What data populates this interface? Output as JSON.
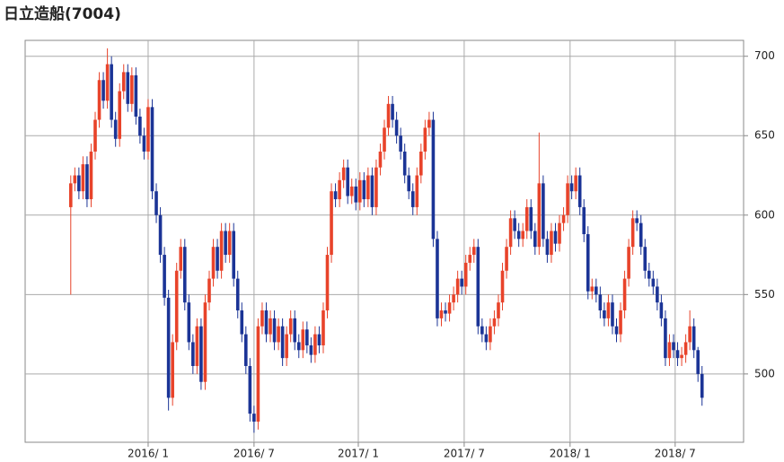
{
  "chart_data": {
    "type": "candlestick",
    "title": "日立造船(7004)",
    "up_color": "#e8432a",
    "down_color": "#1b3496",
    "grid": true,
    "ylim": [
      457,
      710
    ],
    "yticks": [
      500,
      550,
      600,
      650,
      700
    ],
    "xlim": [
      -11.2,
      165.2
    ],
    "xticks": [
      {
        "value": 19.0,
        "label": "2016/ 1"
      },
      {
        "value": 45.0,
        "label": "2016/ 7"
      },
      {
        "value": 70.6,
        "label": "2017/ 1"
      },
      {
        "value": 96.6,
        "label": "2017/ 7"
      },
      {
        "value": 122.6,
        "label": "2018/ 1"
      },
      {
        "value": 148.4,
        "label": "2018/ 7"
      }
    ],
    "open": [
      605,
      620,
      625,
      615,
      632,
      610,
      640,
      660,
      685,
      672,
      695,
      660,
      648,
      678,
      690,
      670,
      688,
      662,
      650,
      640,
      668,
      615,
      600,
      575,
      548,
      485,
      520,
      565,
      580,
      545,
      520,
      505,
      530,
      495,
      545,
      560,
      580,
      565,
      590,
      575,
      590,
      560,
      540,
      525,
      505,
      475,
      470,
      530,
      540,
      525,
      535,
      520,
      530,
      510,
      525,
      535,
      520,
      515,
      528,
      518,
      512,
      525,
      518,
      540,
      575,
      615,
      610,
      622,
      630,
      612,
      618,
      608,
      622,
      610,
      625,
      605,
      630,
      640,
      655,
      670,
      660,
      650,
      640,
      625,
      615,
      605,
      625,
      640,
      655,
      660,
      585,
      535,
      540,
      538,
      545,
      550,
      560,
      555,
      570,
      575,
      580,
      530,
      525,
      520,
      530,
      535,
      545,
      565,
      580,
      598,
      590,
      585,
      590,
      605,
      590,
      580,
      620,
      585,
      575,
      590,
      582,
      595,
      600,
      620,
      615,
      625,
      605,
      588,
      552,
      555,
      550,
      540,
      535,
      545,
      530,
      525,
      540,
      560,
      580,
      598,
      595,
      580,
      565,
      560,
      555,
      545,
      535,
      510,
      520,
      515,
      510,
      512,
      520,
      530,
      515,
      500
    ],
    "high": [
      625,
      630,
      630,
      637,
      637,
      645,
      665,
      690,
      690,
      705,
      700,
      665,
      683,
      695,
      695,
      693,
      693,
      667,
      655,
      673,
      673,
      620,
      605,
      580,
      553,
      525,
      570,
      585,
      585,
      550,
      525,
      535,
      535,
      550,
      565,
      585,
      585,
      595,
      595,
      595,
      595,
      565,
      545,
      530,
      510,
      480,
      535,
      545,
      545,
      540,
      540,
      535,
      535,
      530,
      540,
      540,
      525,
      533,
      533,
      523,
      530,
      530,
      545,
      580,
      620,
      620,
      627,
      635,
      635,
      623,
      623,
      627,
      627,
      630,
      630,
      635,
      645,
      660,
      675,
      675,
      665,
      655,
      645,
      630,
      620,
      630,
      645,
      660,
      665,
      665,
      590,
      545,
      545,
      550,
      555,
      565,
      565,
      575,
      580,
      585,
      585,
      535,
      530,
      535,
      540,
      550,
      570,
      585,
      603,
      603,
      595,
      595,
      610,
      610,
      595,
      652,
      625,
      590,
      595,
      595,
      600,
      605,
      625,
      625,
      630,
      630,
      610,
      593,
      560,
      560,
      555,
      545,
      550,
      550,
      535,
      545,
      565,
      585,
      603,
      603,
      600,
      585,
      570,
      565,
      560,
      550,
      540,
      525,
      525,
      520,
      517,
      525,
      540,
      535,
      517,
      505
    ],
    "low": [
      550,
      615,
      610,
      610,
      605,
      605,
      635,
      655,
      667,
      667,
      655,
      643,
      643,
      673,
      665,
      665,
      657,
      645,
      635,
      635,
      610,
      595,
      570,
      543,
      477,
      480,
      515,
      560,
      540,
      515,
      500,
      500,
      490,
      490,
      540,
      555,
      560,
      560,
      570,
      570,
      555,
      535,
      520,
      500,
      470,
      463,
      465,
      525,
      520,
      520,
      515,
      515,
      505,
      505,
      520,
      515,
      510,
      510,
      513,
      507,
      507,
      513,
      513,
      535,
      570,
      605,
      605,
      617,
      607,
      607,
      603,
      603,
      605,
      605,
      600,
      600,
      625,
      635,
      650,
      655,
      645,
      635,
      620,
      610,
      600,
      600,
      620,
      635,
      650,
      580,
      530,
      530,
      533,
      533,
      540,
      545,
      550,
      550,
      565,
      570,
      525,
      520,
      515,
      515,
      525,
      530,
      540,
      560,
      575,
      585,
      580,
      580,
      585,
      585,
      575,
      575,
      580,
      570,
      570,
      577,
      577,
      590,
      595,
      610,
      610,
      600,
      583,
      547,
      547,
      545,
      535,
      530,
      530,
      525,
      520,
      520,
      535,
      555,
      575,
      590,
      575,
      560,
      555,
      550,
      540,
      530,
      505,
      505,
      510,
      505,
      505,
      507,
      515,
      510,
      495,
      480
    ],
    "close": [
      620,
      625,
      615,
      632,
      610,
      640,
      660,
      685,
      672,
      695,
      660,
      648,
      678,
      690,
      670,
      688,
      662,
      650,
      640,
      668,
      615,
      600,
      575,
      548,
      485,
      520,
      565,
      580,
      545,
      520,
      505,
      530,
      495,
      545,
      560,
      580,
      565,
      590,
      575,
      590,
      560,
      540,
      525,
      505,
      475,
      470,
      530,
      540,
      525,
      535,
      520,
      530,
      510,
      525,
      535,
      520,
      515,
      528,
      518,
      512,
      525,
      518,
      540,
      575,
      615,
      610,
      622,
      630,
      612,
      618,
      608,
      622,
      610,
      625,
      605,
      630,
      640,
      655,
      670,
      660,
      650,
      640,
      625,
      615,
      605,
      625,
      640,
      655,
      660,
      585,
      535,
      540,
      538,
      545,
      550,
      560,
      555,
      570,
      575,
      580,
      530,
      525,
      520,
      530,
      535,
      545,
      565,
      580,
      598,
      590,
      585,
      590,
      605,
      590,
      580,
      620,
      585,
      575,
      590,
      582,
      595,
      600,
      620,
      615,
      625,
      605,
      588,
      552,
      555,
      550,
      540,
      535,
      545,
      530,
      525,
      540,
      560,
      580,
      598,
      595,
      580,
      565,
      560,
      555,
      545,
      535,
      510,
      520,
      515,
      510,
      512,
      520,
      530,
      515,
      500,
      485
    ]
  }
}
